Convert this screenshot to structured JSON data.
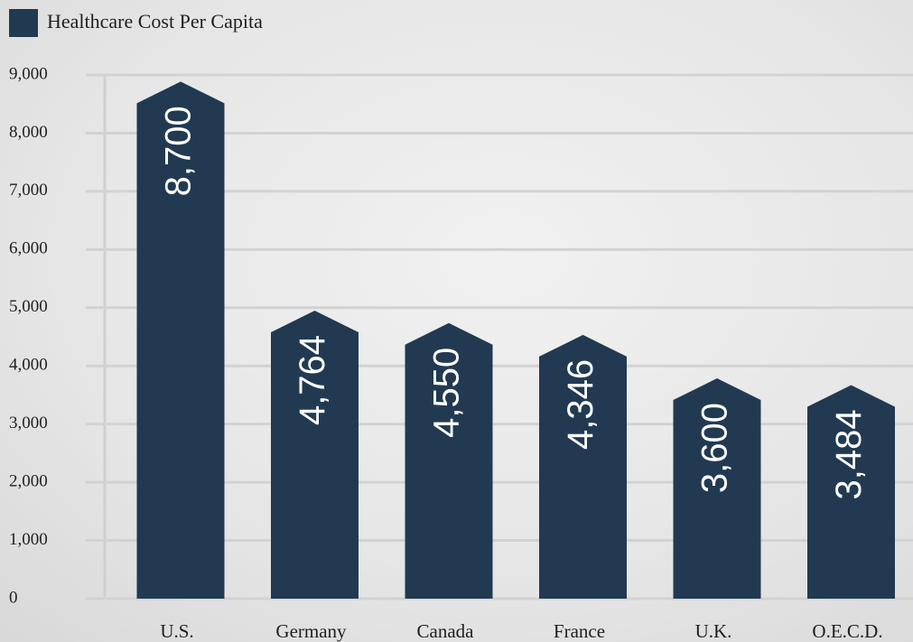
{
  "chart_data": {
    "type": "bar",
    "categories": [
      "U.S.",
      "Germany",
      "Canada",
      "France",
      "U.K.",
      "O.E.C.D."
    ],
    "series": [
      {
        "name": "Healthcare Cost Per Capita",
        "color": "#213a52",
        "values": [
          8700,
          4764,
          4550,
          4346,
          3600,
          3484
        ],
        "value_labels": [
          "8,700",
          "4,764",
          "4,550",
          "4,346",
          "3,600",
          "3,484"
        ]
      }
    ],
    "ylim": [
      0,
      9000
    ],
    "yticks": [
      0,
      {
        "value": 1000,
        "label": "1,000"
      },
      {
        "value": 2000,
        "label": "2,000"
      },
      {
        "value": 3000,
        "label": "3,000"
      },
      {
        "value": 4000,
        "label": "4,000"
      },
      {
        "value": 5000,
        "label": "5,000"
      },
      {
        "value": 6000,
        "label": "6,000"
      },
      {
        "value": 7000,
        "label": "7,000"
      },
      {
        "value": 8000,
        "label": "8,000"
      },
      {
        "value": 9000,
        "label": "9,000"
      }
    ],
    "grid": true,
    "legend": "top-left"
  }
}
